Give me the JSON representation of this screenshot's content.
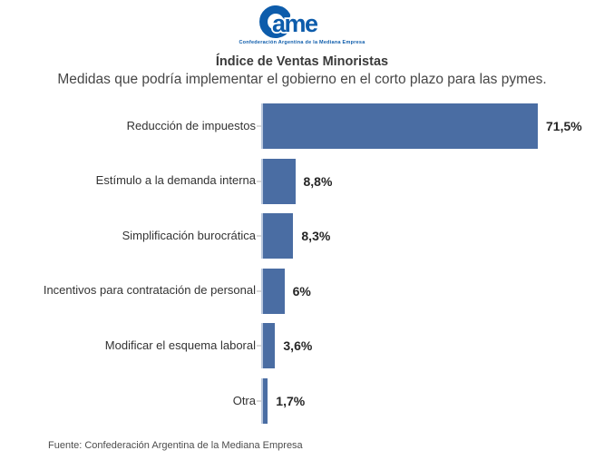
{
  "logo": {
    "text": "ame",
    "tagline": "Confederación Argentina de la Mediana Empresa",
    "color": "#0D5CAB"
  },
  "header": {
    "title": "Índice de Ventas Minoristas",
    "subtitle": "Medidas que podría implementar el gobierno en el corto plazo para las pymes."
  },
  "chart_data": {
    "type": "bar",
    "orientation": "horizontal",
    "title": "Índice de Ventas Minoristas",
    "subtitle": "Medidas que podría implementar el gobierno en el corto plazo para las pymes.",
    "categories": [
      "Reducción de impuestos",
      "Estímulo a la demanda interna",
      "Simplificación burocrática",
      "Incentivos para contratación de personal",
      "Modificar el esquema laboral",
      "Otra"
    ],
    "values": [
      71.5,
      8.8,
      8.3,
      6,
      3.6,
      1.7
    ],
    "value_labels": [
      "71,5%",
      "8,8%",
      "8,3%",
      "6%",
      "3,6%",
      "1,7%"
    ],
    "unit": "%",
    "xlabel": "",
    "ylabel": "",
    "xlim": [
      0,
      75
    ],
    "grid": false,
    "legend": false,
    "bar_color": "#4A6DA3"
  },
  "footer": {
    "source": "Fuente: Confederación Argentina de la Mediana Empresa"
  }
}
